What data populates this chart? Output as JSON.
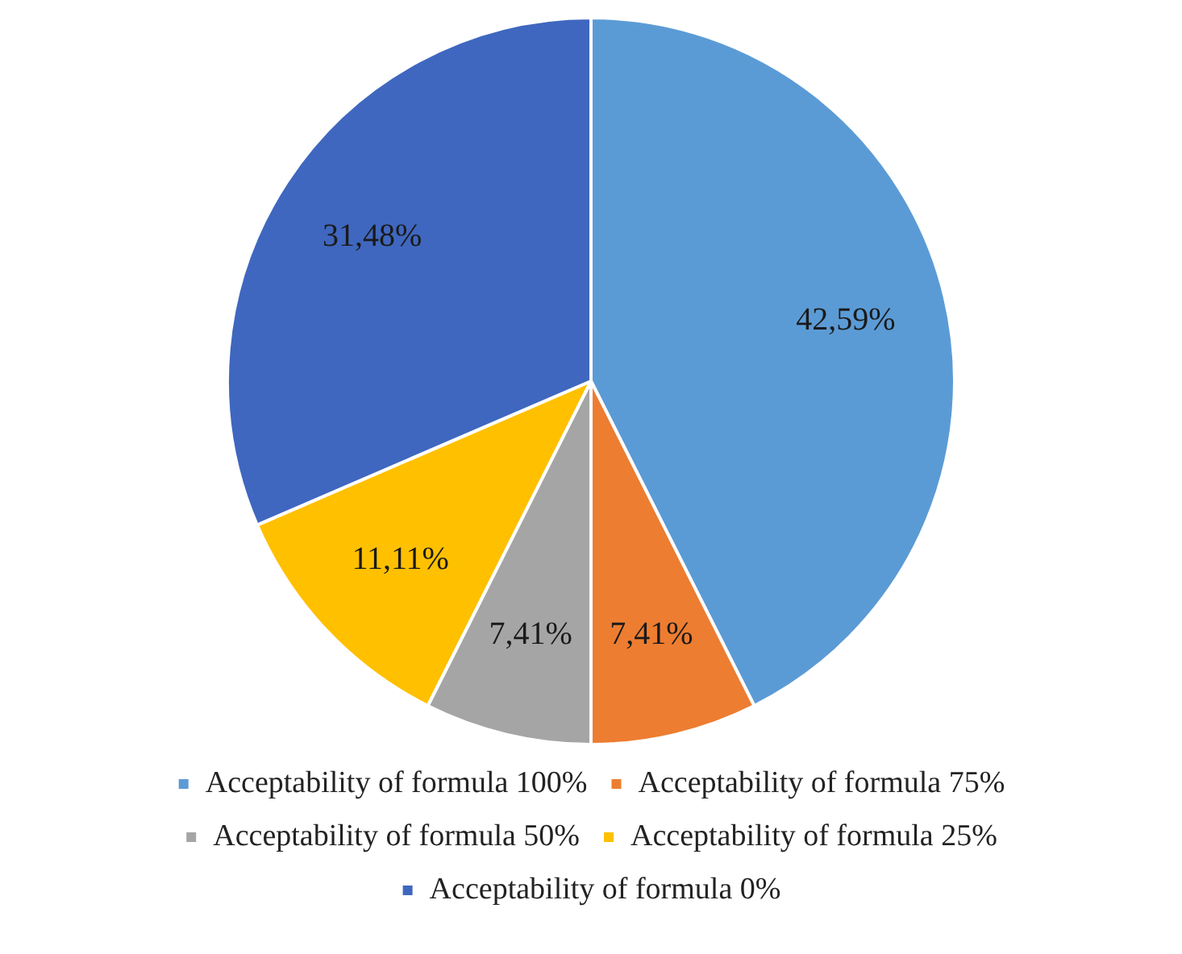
{
  "chart_data": {
    "type": "pie",
    "categories": [
      "Acceptability of formula 100%",
      "Acceptability of formula 75%",
      "Acceptability of formula 50%",
      "Acceptability of formula 25%",
      "Acceptability of formula 0%"
    ],
    "values": [
      42.59,
      7.41,
      7.41,
      11.11,
      31.48
    ],
    "colors": [
      "#5b9bd5",
      "#ed7d31",
      "#a5a5a5",
      "#ffc000",
      "#3f67bf"
    ],
    "value_labels": [
      "42,59%",
      "7,41%",
      "7,41%",
      "11,11%",
      "31,48%"
    ],
    "legend": "bottom"
  }
}
